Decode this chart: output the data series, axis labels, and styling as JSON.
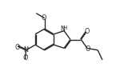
{
  "bg_color": "#ffffff",
  "line_color": "#2a2a2a",
  "lw": 1.0,
  "fs": 5.8,
  "xlim": [
    -0.08,
    1.12
  ],
  "ylim": [
    0.02,
    0.98
  ],
  "figsize": [
    1.65,
    0.99
  ],
  "dpi": 100
}
